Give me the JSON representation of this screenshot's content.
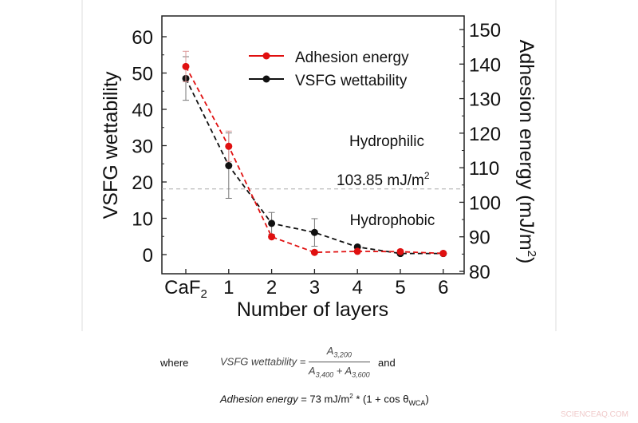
{
  "chart_data": {
    "type": "line",
    "xlabel": "Number of layers",
    "ylabel_left": "VSFG wettability",
    "ylabel_right": "Adhesion energy (mJ/m2)",
    "categories": [
      "CaF2",
      "1",
      "2",
      "3",
      "4",
      "5",
      "6"
    ],
    "ylim_left": [
      0,
      60
    ],
    "yticks_left": [
      0,
      10,
      20,
      30,
      40,
      50,
      60
    ],
    "ylim_right": [
      80,
      150
    ],
    "yticks_right": [
      80,
      90,
      100,
      110,
      120,
      130,
      140,
      150
    ],
    "series": [
      {
        "name": "Adhesion energy",
        "axis": "right",
        "color": "#e01010",
        "values": [
          139.3,
          116.2,
          90.0,
          85.5,
          85.8,
          85.7,
          85.2
        ],
        "errors": [
          4.4,
          4.4,
          0,
          0,
          0,
          0,
          0
        ]
      },
      {
        "name": "VSFG wettability",
        "axis": "left",
        "color": "#111111",
        "values": [
          48.5,
          24.5,
          8.6,
          6.1,
          2.1,
          0.3,
          0.3
        ],
        "errors": [
          6,
          9,
          3,
          3.8,
          0,
          0,
          0
        ]
      }
    ],
    "threshold": {
      "value": 103.85,
      "axis": "right",
      "label": "103.85 mJ/m2"
    },
    "annotations": [
      "Hydrophilic",
      "Hydrophobic"
    ],
    "legend": "top-right",
    "grid": false
  },
  "formula": {
    "where": "where",
    "vsfg_lhs": "VSFG wettability =",
    "num": "A",
    "num_sub": "3,200",
    "den_a": "A",
    "den_a_sub": "3,400",
    "den_plus": " + ",
    "den_b": "A",
    "den_b_sub": "3,600",
    "and": "and",
    "adhesion_lhs": "Adhesion energy",
    "adhesion_rhs": " = 73 mJ/m",
    "adhesion_sup": "2",
    "adhesion_rest": " * (1 + cos θ",
    "adhesion_sub": "WCA",
    "adhesion_close": ")"
  },
  "watermark": "SCIENCEAQ.COM"
}
